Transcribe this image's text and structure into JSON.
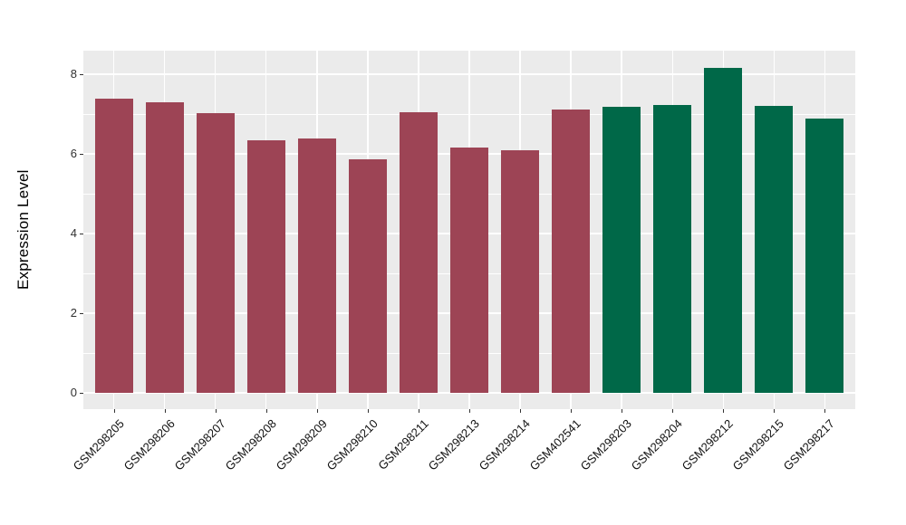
{
  "chart_data": {
    "type": "bar",
    "title": "",
    "xlabel": "",
    "ylabel": "Expression Level",
    "categories": [
      "GSM298205",
      "GSM298206",
      "GSM298207",
      "GSM298208",
      "GSM298209",
      "GSM298210",
      "GSM298211",
      "GSM298213",
      "GSM298214",
      "GSM402541",
      "GSM298203",
      "GSM298204",
      "GSM298212",
      "GSM298215",
      "GSM298217"
    ],
    "values": [
      7.38,
      7.3,
      7.03,
      6.33,
      6.38,
      5.86,
      7.05,
      6.15,
      6.1,
      7.12,
      7.18,
      7.23,
      8.16,
      7.21,
      6.89
    ],
    "bar_groups": [
      "A",
      "A",
      "A",
      "A",
      "A",
      "A",
      "A",
      "A",
      "A",
      "A",
      "B",
      "B",
      "B",
      "B",
      "B"
    ],
    "group_colors": {
      "A": "#9d4455",
      "B": "#006848"
    },
    "ylim": [
      0,
      8.59
    ],
    "yticks_major": [
      0,
      2,
      4,
      6,
      8
    ],
    "yticks_minor": [
      1,
      3,
      5,
      7
    ],
    "x_tick_rotation": 45,
    "grid": "white major and minor gridlines on gray panel",
    "legend": "none"
  },
  "style": {
    "panel_bg": "#ebebeb",
    "grid_color": "#ffffff",
    "axis_text_color": "#303030",
    "axis_title_color": "#000000",
    "background": "#ffffff"
  }
}
